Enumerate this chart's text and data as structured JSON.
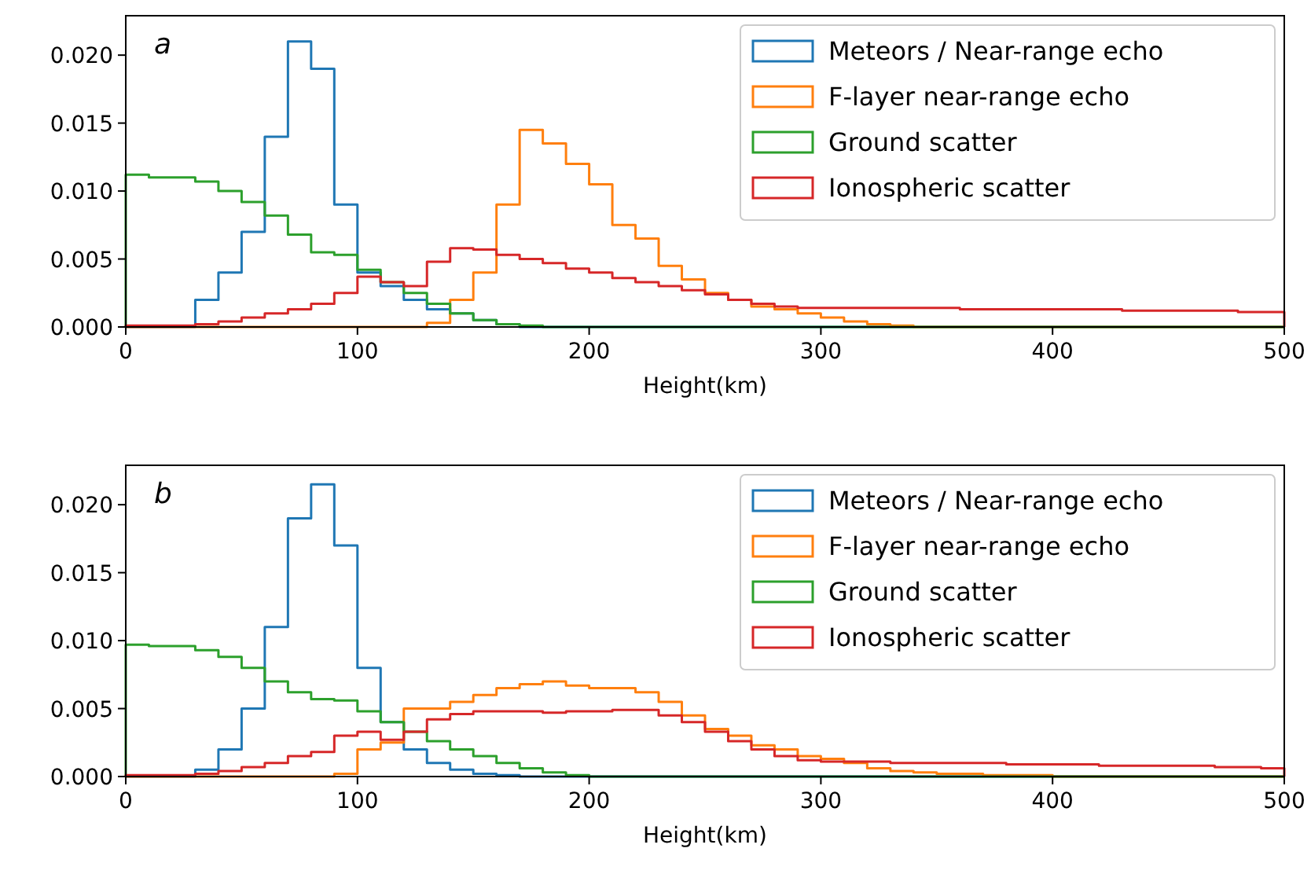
{
  "chart_data": [
    {
      "type": "histogram",
      "xlabel": "Height(km)",
      "annotations": [
        "a"
      ],
      "legend": "top right",
      "grid": false,
      "bins": [
        0,
        10,
        20,
        30,
        40,
        50,
        60,
        70,
        80,
        90,
        100,
        110,
        120,
        130,
        140,
        150,
        160,
        170,
        180,
        190,
        200,
        210,
        220,
        230,
        240,
        250,
        260,
        270,
        280,
        290,
        300,
        310,
        320,
        330,
        340,
        350,
        360,
        370,
        380,
        390,
        400,
        410,
        420,
        430,
        440,
        450,
        460,
        470,
        480,
        490,
        500
      ],
      "xlim": [
        0,
        500
      ],
      "xticks": [
        0,
        100,
        200,
        300,
        400,
        500
      ],
      "ylim": [
        0,
        0.0229
      ],
      "yticks": [
        {
          "value": 0,
          "label": "0.000"
        },
        {
          "value": 0.005,
          "label": "0.005"
        },
        {
          "value": 0.01,
          "label": "0.010"
        },
        {
          "value": 0.015,
          "label": "0.015"
        },
        {
          "value": 0.02,
          "label": "0.020"
        }
      ],
      "series": [
        {
          "name": "Meteors / Near-range echo",
          "color": "#1f77b4",
          "values": [
            0,
            0,
            0,
            0.002,
            0.004,
            0.007,
            0.014,
            0.021,
            0.019,
            0.009,
            0.004,
            0.003,
            0.002,
            0.0013,
            0.001,
            0.0005,
            0.0002,
            0,
            0,
            0,
            0,
            0,
            0,
            0,
            0,
            0,
            0,
            0,
            0,
            0,
            0,
            0,
            0,
            0,
            0,
            0,
            0,
            0,
            0,
            0,
            0,
            0,
            0,
            0,
            0,
            0,
            0,
            0,
            0,
            0
          ]
        },
        {
          "name": "F-layer near-range echo",
          "color": "#ff7f0e",
          "values": [
            0,
            0,
            0,
            0,
            0,
            0,
            0,
            0,
            0,
            0,
            0,
            0,
            0,
            0.0003,
            0.002,
            0.004,
            0.009,
            0.0145,
            0.0135,
            0.012,
            0.0105,
            0.0075,
            0.0065,
            0.0045,
            0.0035,
            0.0025,
            0.002,
            0.0015,
            0.0013,
            0.001,
            0.0007,
            0.0004,
            0.0002,
            0.0001,
            0,
            0,
            0,
            0,
            0,
            0,
            0,
            0,
            0,
            0,
            0,
            0,
            0,
            0,
            0,
            0
          ]
        },
        {
          "name": "Ground scatter",
          "color": "#2ca02c",
          "values": [
            0.0112,
            0.011,
            0.011,
            0.0107,
            0.01,
            0.0092,
            0.0082,
            0.0068,
            0.0055,
            0.0053,
            0.0042,
            0.0033,
            0.0025,
            0.0017,
            0.001,
            0.0005,
            0.0002,
            0.0001,
            0,
            0,
            0,
            0,
            0,
            0,
            0,
            0,
            0,
            0,
            0,
            0,
            0,
            0,
            0,
            0,
            0,
            0,
            0,
            0,
            0,
            0,
            0,
            0,
            0,
            0,
            0,
            0,
            0,
            0,
            0,
            0
          ]
        },
        {
          "name": "Ionospheric scatter",
          "color": "#d62728",
          "values": [
            0.0001,
            0.0001,
            0.0001,
            0.0002,
            0.0004,
            0.0007,
            0.001,
            0.0013,
            0.0017,
            0.0025,
            0.0037,
            0.0033,
            0.003,
            0.0048,
            0.0058,
            0.0057,
            0.0053,
            0.005,
            0.0047,
            0.0043,
            0.004,
            0.0036,
            0.0033,
            0.003,
            0.0027,
            0.0024,
            0.002,
            0.0017,
            0.0015,
            0.0014,
            0.0014,
            0.0014,
            0.0014,
            0.0014,
            0.0014,
            0.0014,
            0.0013,
            0.0013,
            0.0013,
            0.0013,
            0.0013,
            0.0013,
            0.0013,
            0.0012,
            0.0012,
            0.0012,
            0.0012,
            0.0012,
            0.0011,
            0.0011
          ]
        }
      ]
    },
    {
      "type": "histogram",
      "xlabel": "Height(km)",
      "annotations": [
        "b"
      ],
      "legend": "top right",
      "grid": false,
      "bins": [
        0,
        10,
        20,
        30,
        40,
        50,
        60,
        70,
        80,
        90,
        100,
        110,
        120,
        130,
        140,
        150,
        160,
        170,
        180,
        190,
        200,
        210,
        220,
        230,
        240,
        250,
        260,
        270,
        280,
        290,
        300,
        310,
        320,
        330,
        340,
        350,
        360,
        370,
        380,
        390,
        400,
        410,
        420,
        430,
        440,
        450,
        460,
        470,
        480,
        490,
        500
      ],
      "xlim": [
        0,
        500
      ],
      "xticks": [
        0,
        100,
        200,
        300,
        400,
        500
      ],
      "ylim": [
        0,
        0.0229
      ],
      "yticks": [
        {
          "value": 0,
          "label": "0.000"
        },
        {
          "value": 0.005,
          "label": "0.005"
        },
        {
          "value": 0.01,
          "label": "0.010"
        },
        {
          "value": 0.015,
          "label": "0.015"
        },
        {
          "value": 0.02,
          "label": "0.020"
        }
      ],
      "series": [
        {
          "name": "Meteors / Near-range echo",
          "color": "#1f77b4",
          "values": [
            0,
            0,
            0,
            0.0005,
            0.002,
            0.005,
            0.011,
            0.019,
            0.0215,
            0.017,
            0.008,
            0.004,
            0.002,
            0.001,
            0.0005,
            0.0002,
            0.0001,
            0,
            0,
            0,
            0,
            0,
            0,
            0,
            0,
            0,
            0,
            0,
            0,
            0,
            0,
            0,
            0,
            0,
            0,
            0,
            0,
            0,
            0,
            0,
            0,
            0,
            0,
            0,
            0,
            0,
            0,
            0,
            0,
            0
          ]
        },
        {
          "name": "F-layer near-range echo",
          "color": "#ff7f0e",
          "values": [
            0,
            0,
            0,
            0,
            0,
            0,
            0,
            0,
            0,
            0.0002,
            0.002,
            0.0025,
            0.005,
            0.005,
            0.0055,
            0.006,
            0.0065,
            0.0068,
            0.007,
            0.0067,
            0.0065,
            0.0065,
            0.0062,
            0.0055,
            0.0045,
            0.0035,
            0.003,
            0.0023,
            0.002,
            0.0015,
            0.0013,
            0.001,
            0.0006,
            0.0004,
            0.0003,
            0.0002,
            0.0002,
            0.0001,
            0.0001,
            0.0001,
            0,
            0,
            0,
            0,
            0,
            0,
            0,
            0,
            0,
            0
          ]
        },
        {
          "name": "Ground scatter",
          "color": "#2ca02c",
          "values": [
            0.0097,
            0.0096,
            0.0096,
            0.0093,
            0.0088,
            0.008,
            0.007,
            0.0062,
            0.0057,
            0.0056,
            0.0048,
            0.004,
            0.0033,
            0.0026,
            0.002,
            0.0015,
            0.001,
            0.0006,
            0.0003,
            0.0001,
            0,
            0,
            0,
            0,
            0,
            0,
            0,
            0,
            0,
            0,
            0,
            0,
            0,
            0,
            0,
            0,
            0,
            0,
            0,
            0,
            0,
            0,
            0,
            0,
            0,
            0,
            0,
            0,
            0,
            0
          ]
        },
        {
          "name": "Ionospheric scatter",
          "color": "#d62728",
          "values": [
            0.0001,
            0.0001,
            0.0001,
            0.0002,
            0.0004,
            0.0007,
            0.001,
            0.0015,
            0.0018,
            0.003,
            0.0033,
            0.0027,
            0.0033,
            0.0042,
            0.0046,
            0.0048,
            0.0048,
            0.0048,
            0.0047,
            0.0048,
            0.0048,
            0.0049,
            0.0049,
            0.0045,
            0.004,
            0.0033,
            0.0026,
            0.002,
            0.0015,
            0.0012,
            0.0011,
            0.0011,
            0.0011,
            0.001,
            0.001,
            0.001,
            0.001,
            0.001,
            0.0009,
            0.0009,
            0.0009,
            0.0009,
            0.0008,
            0.0008,
            0.0008,
            0.0008,
            0.0008,
            0.0007,
            0.0007,
            0.0006
          ]
        }
      ]
    }
  ]
}
